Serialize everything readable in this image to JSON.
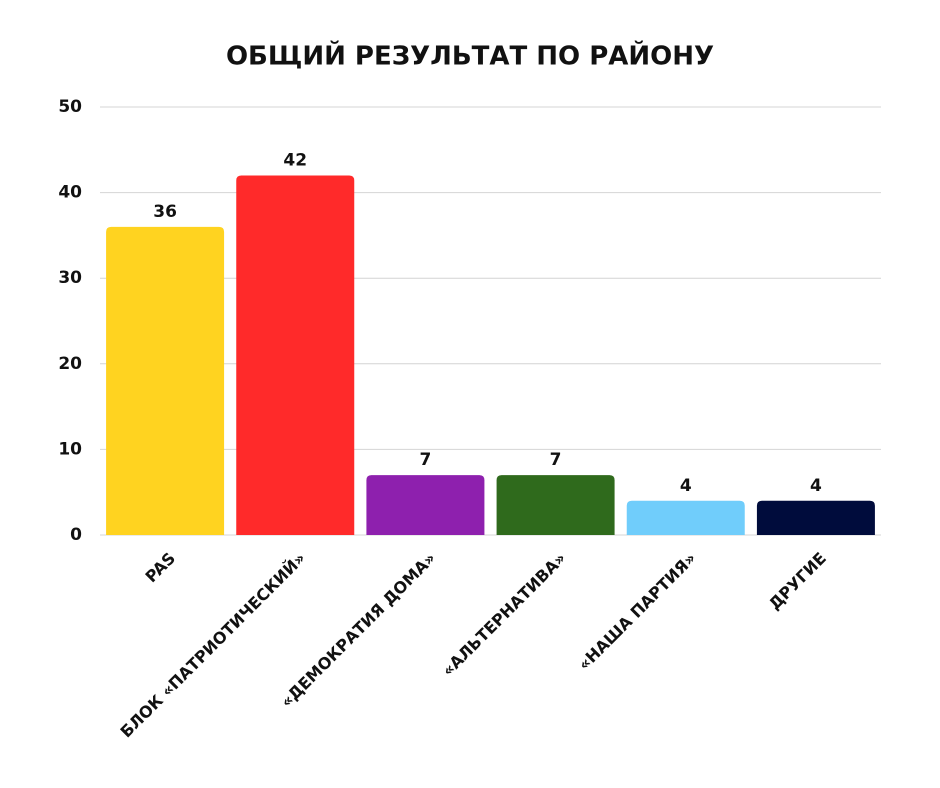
{
  "chart_data": {
    "type": "bar",
    "title": "ОБЩИЙ РЕЗУЛЬТАТ ПО РАЙОНУ",
    "categories": [
      "PAS",
      "БЛОК «ПАТРИОТИЧЕСКИЙ»",
      "«ДЕМОКРАТИЯ ДОМА»",
      "«АЛЬТЕРНАТИВА»",
      "«НАША ПАРТИЯ»",
      "ДРУГИЕ"
    ],
    "values": [
      36,
      42,
      7,
      7,
      4,
      4
    ],
    "colors": [
      "#ffd320",
      "#ff2a2a",
      "#8e20ae",
      "#2f6a1c",
      "#70cdfb",
      "#000c3c"
    ],
    "ylim": [
      0,
      50
    ],
    "yticks": [
      0,
      10,
      20,
      30,
      40,
      50
    ],
    "grid": true
  }
}
